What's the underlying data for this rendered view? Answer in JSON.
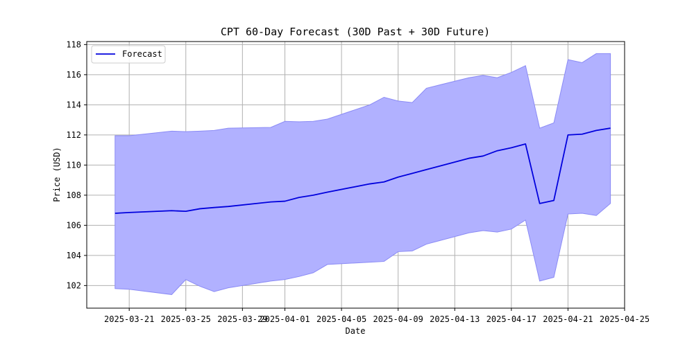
{
  "chart_data": {
    "type": "line",
    "title": "CPT 60-Day Forecast (30D Past + 30D Future)",
    "xlabel": "Date",
    "ylabel": "Price (USD)",
    "x_ticks": [
      "2025-03-21",
      "2025-03-25",
      "2025-03-29",
      "2025-04-01",
      "2025-04-05",
      "2025-04-09",
      "2025-04-13",
      "2025-04-17",
      "2025-04-21",
      "2025-04-25"
    ],
    "y_ticks": [
      102,
      104,
      106,
      108,
      110,
      112,
      114,
      116,
      118
    ],
    "xlim": [
      "2025-03-18",
      "2025-04-25"
    ],
    "ylim": [
      100.5,
      118.2
    ],
    "grid": true,
    "legend_position": "top-left",
    "colors": {
      "line": "#0000dd",
      "band": "#b1b1ff",
      "band_edge": "#8a8af5",
      "grid": "#b0b0b0"
    },
    "series": [
      {
        "name": "Forecast",
        "x": [
          "2025-03-20",
          "2025-03-21",
          "2025-03-24",
          "2025-03-25",
          "2025-03-26",
          "2025-03-27",
          "2025-03-28",
          "2025-03-31",
          "2025-04-01",
          "2025-04-02",
          "2025-04-03",
          "2025-04-04",
          "2025-04-07",
          "2025-04-08",
          "2025-04-09",
          "2025-04-10",
          "2025-04-11",
          "2025-04-14",
          "2025-04-15",
          "2025-04-16",
          "2025-04-17",
          "2025-04-18",
          "2025-04-19",
          "2025-04-20",
          "2025-04-21",
          "2025-04-22",
          "2025-04-23",
          "2025-04-24"
        ],
        "y": [
          106.8,
          106.85,
          106.97,
          106.93,
          107.1,
          107.18,
          107.25,
          107.55,
          107.6,
          107.85,
          108.0,
          108.2,
          108.75,
          108.88,
          109.2,
          109.45,
          109.7,
          110.45,
          110.6,
          110.95,
          111.15,
          111.4,
          107.45,
          107.65,
          112.0,
          112.05,
          112.3,
          112.45
        ],
        "lower": [
          101.8,
          101.75,
          101.4,
          102.4,
          101.95,
          101.6,
          101.85,
          102.3,
          102.4,
          102.6,
          102.85,
          103.4,
          103.55,
          103.6,
          104.25,
          104.3,
          104.75,
          105.5,
          105.65,
          105.55,
          105.75,
          106.35,
          102.3,
          102.55,
          106.75,
          106.8,
          106.65,
          107.45
        ],
        "upper": [
          111.95,
          111.95,
          112.25,
          112.22,
          112.25,
          112.3,
          112.45,
          112.5,
          112.9,
          112.87,
          112.9,
          113.05,
          114.0,
          114.5,
          114.25,
          114.15,
          115.1,
          115.8,
          115.95,
          115.8,
          116.15,
          116.6,
          112.45,
          112.8,
          117.0,
          116.8,
          117.4,
          117.4
        ]
      }
    ]
  }
}
